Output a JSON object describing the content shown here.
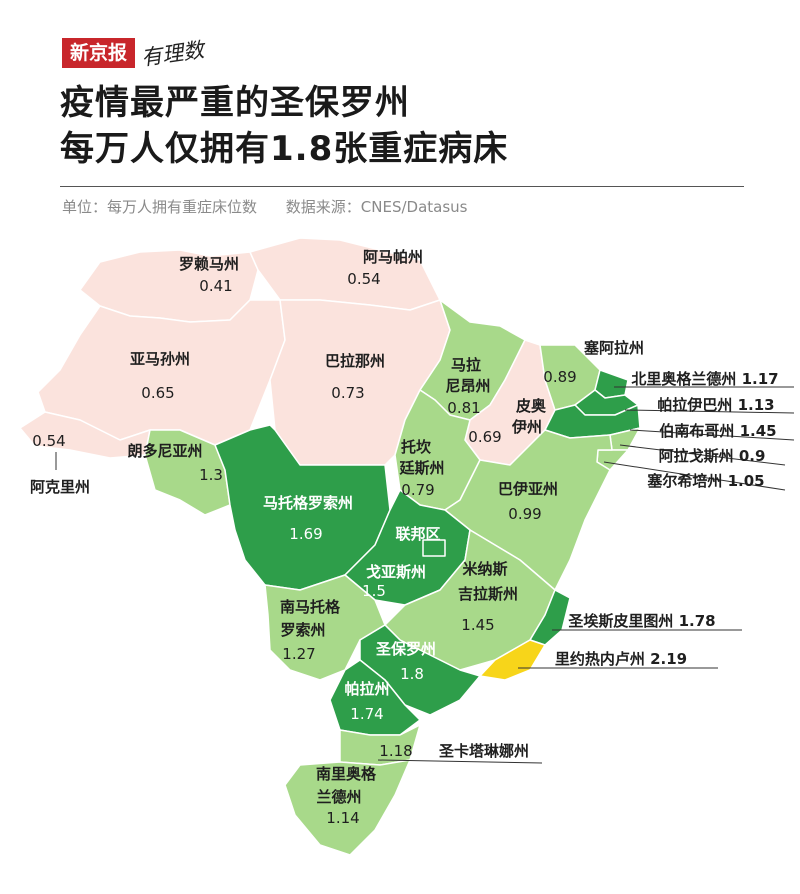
{
  "brand": {
    "name": "新京报",
    "sub": "有理数"
  },
  "title": {
    "line1": "疫情最严重的圣保罗州",
    "line2": "每万人仅拥有1.8张重症病床"
  },
  "unit": {
    "label": "单位：每万人拥有重症床位数",
    "source": "数据来源：CNES/Datasus"
  },
  "colors": {
    "low": "#fbe3dd",
    "mid": "#a8d98a",
    "high": "#2e9e4a",
    "top": "#f7d51a",
    "line": "#ffffff",
    "callout": "#333333"
  },
  "states": [
    {
      "id": "roraima",
      "name": "罗赖马州",
      "value": "0.41",
      "tier": "low"
    },
    {
      "id": "amapa",
      "name": "阿马帕州",
      "value": "0.54",
      "tier": "low"
    },
    {
      "id": "amazonas",
      "name": "亚马孙州",
      "value": "0.65",
      "tier": "low"
    },
    {
      "id": "para",
      "name": "巴拉那州",
      "value": "0.73",
      "tier": "low"
    },
    {
      "id": "acre",
      "name": "阿克里州",
      "value": "0.54",
      "tier": "low"
    },
    {
      "id": "rondonia",
      "name": "朗多尼亚州",
      "value": "1.3",
      "tier": "mid"
    },
    {
      "id": "mato-grosso",
      "name": "马托格罗索州",
      "value": "1.69",
      "tier": "high"
    },
    {
      "id": "maranhao",
      "name": "马拉尼昂州",
      "value": "0.81",
      "tier": "mid"
    },
    {
      "id": "piaui",
      "name": "皮奥伊州",
      "value": "0.69",
      "tier": "low"
    },
    {
      "id": "tocantins",
      "name": "托坎廷斯州",
      "value": "0.79",
      "tier": "mid"
    },
    {
      "id": "bahia",
      "name": "巴伊亚州",
      "value": "0.99",
      "tier": "mid"
    },
    {
      "id": "ceara",
      "name": "塞阿拉州",
      "value": "0.89",
      "tier": "mid"
    },
    {
      "id": "rio-grande-do-norte",
      "name": "北里奥格兰德州",
      "value": "1.17",
      "tier": "high"
    },
    {
      "id": "paraiba",
      "name": "帕拉伊巴州",
      "value": "1.13",
      "tier": "high"
    },
    {
      "id": "pernambuco",
      "name": "伯南布哥州",
      "value": "1.45",
      "tier": "high"
    },
    {
      "id": "alagoas",
      "name": "阿拉戈斯州",
      "value": "0.9",
      "tier": "mid"
    },
    {
      "id": "sergipe",
      "name": "塞尔希培州",
      "value": "1.05",
      "tier": "mid"
    },
    {
      "id": "distrito-federal",
      "name": "联邦区",
      "value": "",
      "tier": "high"
    },
    {
      "id": "goias",
      "name": "戈亚斯州",
      "value": "1.5",
      "tier": "high"
    },
    {
      "id": "minas-gerais",
      "name": "米纳斯吉拉斯州",
      "value": "1.45",
      "tier": "mid"
    },
    {
      "id": "mato-grosso-do-sul",
      "name": "南马托格罗索州",
      "value": "1.27",
      "tier": "mid"
    },
    {
      "id": "sao-paulo",
      "name": "圣保罗州",
      "value": "1.8",
      "tier": "high"
    },
    {
      "id": "espirito-santo",
      "name": "圣埃斯皮里图州",
      "value": "1.78",
      "tier": "high"
    },
    {
      "id": "rio-de-janeiro",
      "name": "里约热内卢州",
      "value": "2.19",
      "tier": "top"
    },
    {
      "id": "parana",
      "name": "帕拉州",
      "value": "1.74",
      "tier": "high"
    },
    {
      "id": "santa-catarina",
      "name": "圣卡塔琳娜州",
      "value": "1.18",
      "tier": "mid"
    },
    {
      "id": "rio-grande-do-sul",
      "name": "南里奥格兰德州",
      "value": "1.14",
      "tier": "mid"
    }
  ],
  "labels": {
    "roraima": [
      "罗赖马州",
      "0.41"
    ],
    "amapa": [
      "阿马帕州",
      "0.54"
    ],
    "amazonas": [
      "亚马孙州",
      "0.65"
    ],
    "para": [
      "巴拉那州",
      "0.73"
    ],
    "acre_value": "0.54",
    "acre_name": "阿克里州",
    "rondonia": [
      "朗多尼亚州",
      "1.3"
    ],
    "mato_grosso": [
      "马托格罗索州",
      "1.69"
    ],
    "maranhao": [
      "马拉",
      "尼昂州",
      "0.81"
    ],
    "piaui": [
      "皮奥",
      "伊州",
      "0.69"
    ],
    "tocantins": [
      "托坎",
      "廷斯州",
      "0.79"
    ],
    "bahia": [
      "巴伊亚州",
      "0.99"
    ],
    "ceara": [
      "塞阿拉州",
      "0.89"
    ],
    "rgn": "北里奥格兰德州 1.17",
    "paraiba": "帕拉伊巴州 1.13",
    "pernambuco": "伯南布哥州 1.45",
    "alagoas": "阿拉戈斯州 0.9",
    "sergipe": "塞尔希培州 1.05",
    "df": "联邦区",
    "goias": [
      "戈亚斯州",
      "1.5"
    ],
    "minas": [
      "米纳斯",
      "吉拉斯州",
      "1.45"
    ],
    "ms": [
      "南马托格",
      "罗索州",
      "1.27"
    ],
    "sp": [
      "圣保罗州",
      "1.8"
    ],
    "es": "圣埃斯皮里图州 1.78",
    "rj": "里约热内卢州 2.19",
    "parana": [
      "帕拉州",
      "1.74"
    ],
    "sc_value": "1.18",
    "sc_name": "圣卡塔琳娜州",
    "rs": [
      "南里奥格",
      "兰德州",
      "1.14"
    ]
  }
}
